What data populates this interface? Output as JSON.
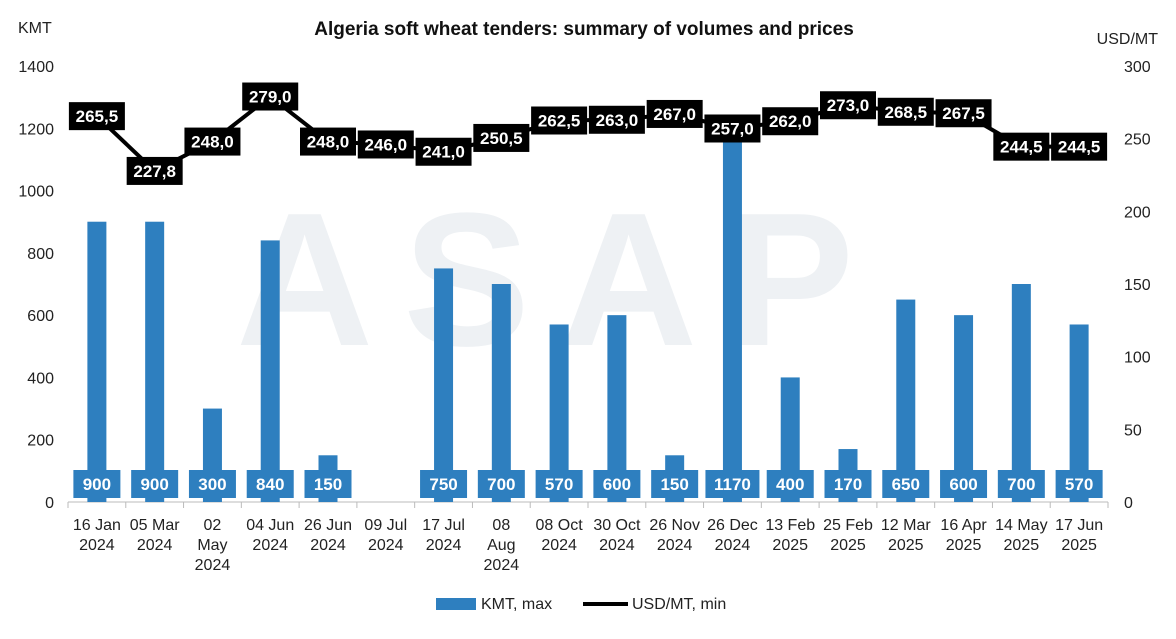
{
  "chart_data": {
    "type": "bar",
    "title": "Algeria soft wheat tenders: summary of volumes and prices",
    "left_axis_unit": "KMT",
    "right_axis_unit": "USD/MT",
    "left_ylim": [
      0,
      1400
    ],
    "left_ticks": [
      "0",
      "200",
      "400",
      "600",
      "800",
      "1000",
      "1200",
      "1400"
    ],
    "right_ylim": [
      0,
      300
    ],
    "right_ticks": [
      "0",
      "50",
      "100",
      "150",
      "200",
      "250",
      "300"
    ],
    "watermark": "ASAP",
    "legend_position": "bottom",
    "grid": false,
    "categories": [
      [
        "16 Jan",
        "2024"
      ],
      [
        "05 Mar",
        "2024"
      ],
      [
        "02",
        "May",
        "2024"
      ],
      [
        "04 Jun",
        "2024"
      ],
      [
        "26 Jun",
        "2024"
      ],
      [
        "09 Jul",
        "2024"
      ],
      [
        "17 Jul",
        "2024"
      ],
      [
        "08",
        "Aug",
        "2024"
      ],
      [
        "08 Oct",
        "2024"
      ],
      [
        "30 Oct",
        "2024"
      ],
      [
        "26 Nov",
        "2024"
      ],
      [
        "26 Dec",
        "2024"
      ],
      [
        "13 Feb",
        "2025"
      ],
      [
        "25 Feb",
        "2025"
      ],
      [
        "12 Mar",
        "2025"
      ],
      [
        "16 Apr",
        "2025"
      ],
      [
        "14 May",
        "2025"
      ],
      [
        "17 Jun",
        "2025"
      ]
    ],
    "series": [
      {
        "name": "KMT, max",
        "kind": "bar",
        "axis": "left",
        "color": "#2E7FBF",
        "values": [
          900,
          900,
          300,
          840,
          150,
          null,
          750,
          700,
          570,
          600,
          150,
          1170,
          400,
          170,
          650,
          600,
          700,
          570
        ],
        "labels": [
          "900",
          "900",
          "300",
          "840",
          "150",
          "",
          "750",
          "700",
          "570",
          "600",
          "150",
          "1170",
          "400",
          "170",
          "650",
          "600",
          "700",
          "570"
        ]
      },
      {
        "name": "USD/MT, min",
        "kind": "line",
        "axis": "right",
        "color": "#000000",
        "values": [
          265.5,
          227.8,
          248.0,
          279.0,
          248.0,
          246.0,
          241.0,
          250.5,
          262.5,
          263.0,
          267.0,
          257.0,
          262.0,
          273.0,
          268.5,
          267.5,
          244.5,
          244.5
        ],
        "labels": [
          "265,5",
          "227,8",
          "248,0",
          "279,0",
          "248,0",
          "246,0",
          "241,0",
          "250,5",
          "262,5",
          "263,0",
          "267,0",
          "257,0",
          "262,0",
          "273,0",
          "268,5",
          "267,5",
          "244,5",
          "244,5"
        ]
      }
    ]
  }
}
